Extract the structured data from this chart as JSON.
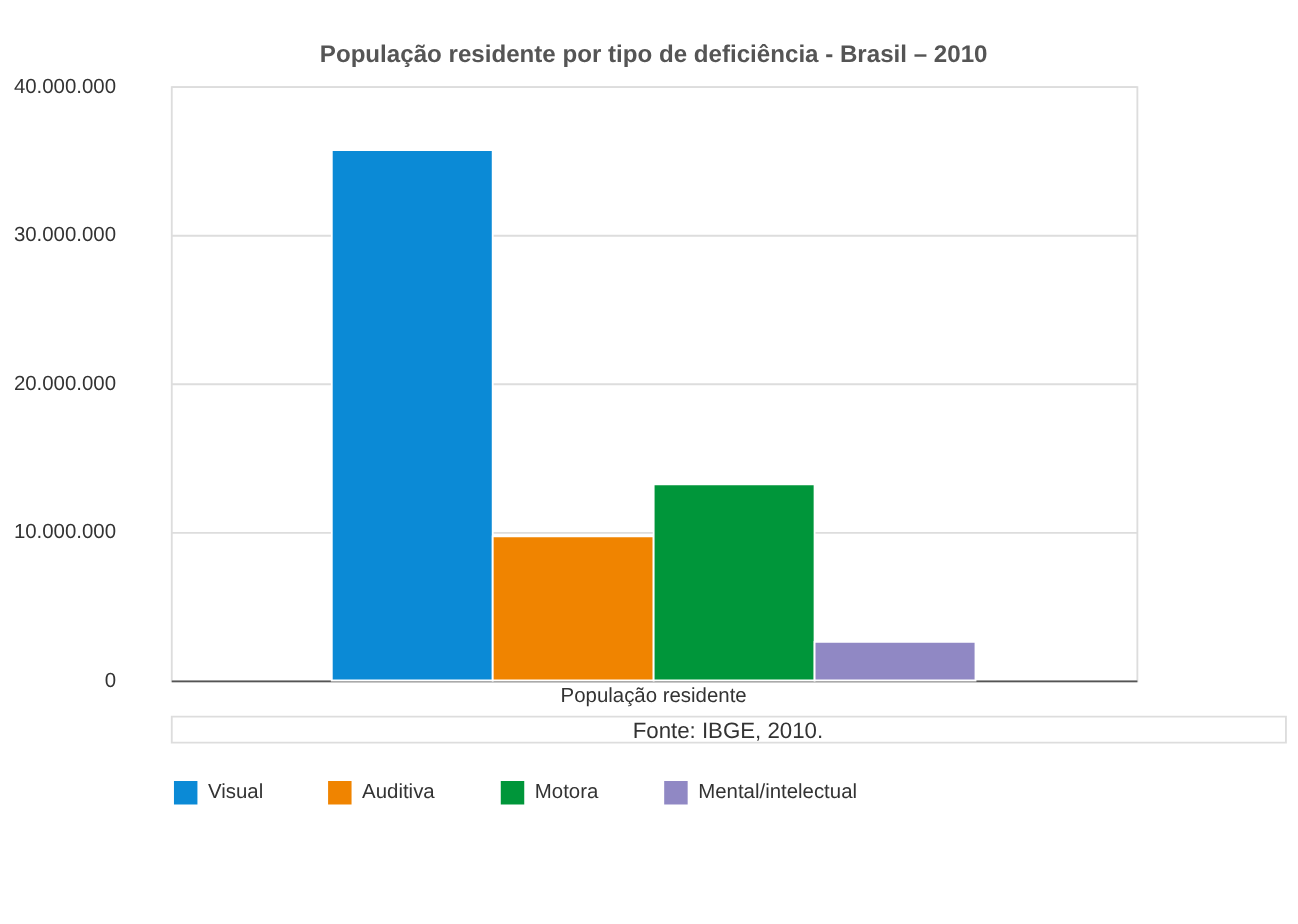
{
  "chart_data": {
    "type": "bar",
    "title": "População residente por tipo de deficiência - Brasil – 2010",
    "categories": [
      "População residente"
    ],
    "series": [
      {
        "name": "Visual",
        "color": "#0b8ad6",
        "values": [
          35700000
        ]
      },
      {
        "name": "Auditiva",
        "color": "#f08400",
        "values": [
          9700000
        ]
      },
      {
        "name": "Motora",
        "color": "#00963a",
        "values": [
          13200000
        ]
      },
      {
        "name": "Mental/intelectual",
        "color": "#9088c4",
        "values": [
          2600000
        ]
      }
    ],
    "ylim": [
      0,
      40000000
    ],
    "yticks": [
      {
        "value": 0,
        "label": "0"
      },
      {
        "value": 10000000,
        "label": "10.000.000"
      },
      {
        "value": 20000000,
        "label": "20.000.000"
      },
      {
        "value": 30000000,
        "label": "30.000.000"
      },
      {
        "value": 40000000,
        "label": "40.000.000"
      }
    ],
    "grid": "y",
    "legend": "bottom",
    "annotations": [
      "Fonte: IBGE, 2010."
    ]
  }
}
